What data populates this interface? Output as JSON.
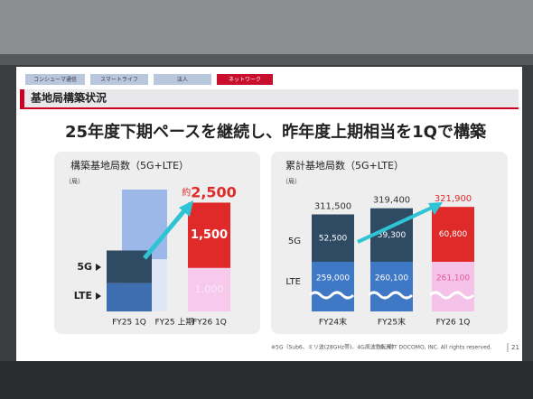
{
  "tabs": [
    "コンシューマ通信",
    "スマートライフ",
    "法人",
    "ネットワーク"
  ],
  "active_tab": 3,
  "header": "基地局構築状況",
  "headline": "25年度下期ペースを継続し、昨年度上期相当を1Qで構築",
  "chart_data": [
    {
      "type": "stacked_bar",
      "title": "構築基地局数（5G+LTE）",
      "unit": "（局）",
      "categories": [
        "FY25 1Q",
        "FY25 上期",
        "FY26 1Q"
      ],
      "series": [
        {
          "name": "LTE",
          "colors": [
            "#3d6fb0",
            "#dfe6f5",
            "#f7c9ec"
          ],
          "values": [
            650,
            1200,
            1000
          ],
          "value_labels": [
            null,
            null,
            "1,000"
          ],
          "label_color": "#f6e8f6"
        },
        {
          "name": "5G",
          "colors": [
            "#2f4a63",
            "#9bb8e8",
            "#e02a2a"
          ],
          "values": [
            750,
            1600,
            1500
          ],
          "value_labels": [
            null,
            null,
            "1,500"
          ],
          "label_color": "#ffffff"
        }
      ],
      "total_prefix": "約",
      "totals": [
        null,
        null,
        2500
      ],
      "total_labels": [
        null,
        null,
        "2,500"
      ],
      "total_colors": [
        "#333333",
        "#333333",
        "#e02a2a"
      ]
    },
    {
      "type": "broken_stacked_bar",
      "title": "累計基地局数（5G+LTE）",
      "unit": "（局）",
      "categories": [
        "FY24末",
        "FY25末",
        "FY26 1Q"
      ],
      "series": [
        {
          "name": "LTE",
          "colors": [
            "#3f78c4",
            "#3f78c4",
            "#f5c2ea"
          ],
          "values": [
            259000,
            260100,
            261100
          ],
          "value_labels": [
            "259,000",
            "260,100",
            "261,100"
          ],
          "label_colors": [
            "#ffffff",
            "#ffffff",
            "#e05a8a"
          ]
        },
        {
          "name": "5G",
          "colors": [
            "#2f4a63",
            "#2f4a63",
            "#e02a2a"
          ],
          "values": [
            52500,
            59300,
            60800
          ],
          "value_labels": [
            "52,500",
            "59,300",
            "60,800"
          ],
          "label_colors": [
            "#ffffff",
            "#ffffff",
            "#ffffff"
          ]
        }
      ],
      "totals": [
        311500,
        319400,
        321900
      ],
      "total_labels": [
        "311,500",
        "319,400",
        "321,900"
      ],
      "total_colors": [
        "#333333",
        "#333333",
        "#e02a2a"
      ]
    }
  ],
  "footnote": "※5G（Sub6、ミリ波(28GHz帯)、4G周波数転用）",
  "copyright": "© NTT DOCOMO, INC. All rights reserved.",
  "page": "21"
}
